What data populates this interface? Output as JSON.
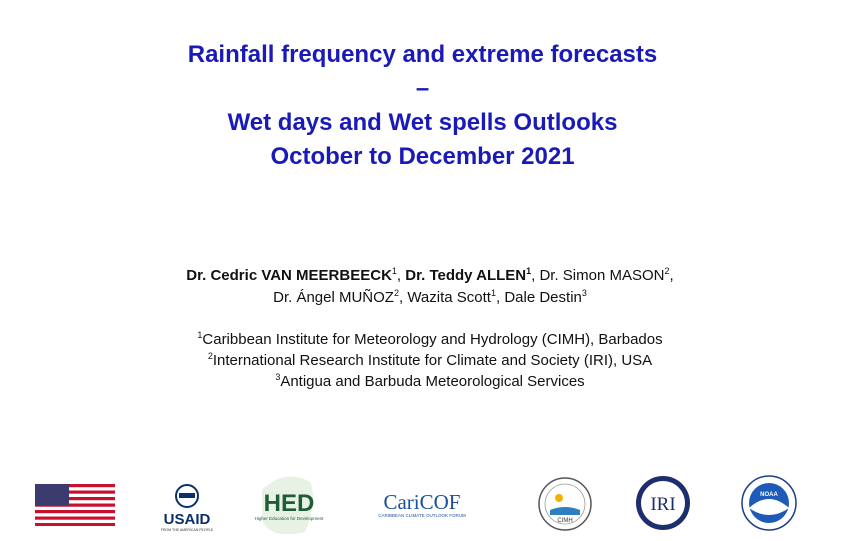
{
  "title": {
    "lines": [
      "Rainfall frequency and extreme forecasts",
      "–",
      "Wet days and Wet spells Outlooks",
      "October to December 2021"
    ]
  },
  "authors": {
    "separator": ",",
    "list": [
      {
        "name": "Dr. Cedric VAN MEERBEECK",
        "affiliation": "1"
      },
      {
        "name": "Dr. Teddy ALLEN",
        "affiliation": "1"
      },
      {
        "name": "Dr. Simon MASON",
        "affiliation": "2"
      },
      {
        "name": "Dr. Ángel MUÑOZ",
        "affiliation": "2"
      },
      {
        "name": "Wazita Scott",
        "affiliation": "1"
      },
      {
        "name": "Dale Destin",
        "affiliation": "3"
      }
    ]
  },
  "affiliations": [
    {
      "number": "1",
      "text": "Caribbean Institute for Meteorology and Hydrology (CIMH), Barbados"
    },
    {
      "number": "2",
      "text": "International Research Institute for Climate and Society (IRI), USA"
    },
    {
      "number": "3",
      "text": "Antigua and Barbuda Meteorological Services"
    }
  ],
  "logos": {
    "usaid": "USAID",
    "usaid_tagline": "FROM THE AMERICAN PEOPLE",
    "hed": "HED",
    "hed_tagline": "Higher Education for Development",
    "caricof": "CariCOF",
    "caricof_tagline": "CARIBBEAN CLIMATE OUTLOOK FORUM",
    "cimh": "CIMH",
    "iri": "IRI",
    "noaa": "NOAA"
  }
}
